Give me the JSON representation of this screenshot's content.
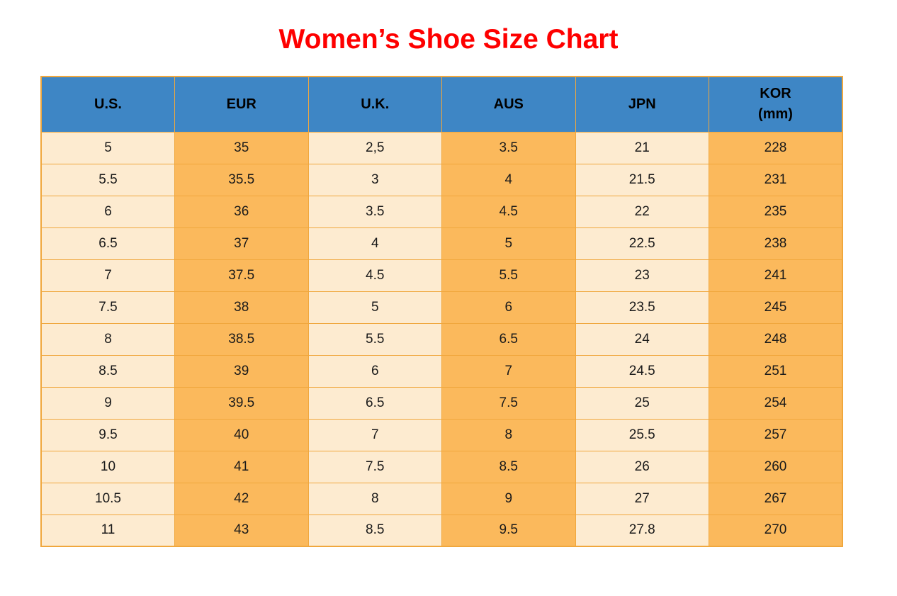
{
  "title": "Women’s Shoe Size Chart",
  "colors": {
    "title_red": "#fe0000",
    "header_blue": "#3e86c5",
    "cell_cream": "#fdebd0",
    "cell_orange": "#fbb95c",
    "border_orange": "#f0a73d"
  },
  "chart_data": {
    "type": "table",
    "title": "Women’s Shoe Size Chart",
    "columns": [
      {
        "lines": [
          "U.S."
        ]
      },
      {
        "lines": [
          "EUR"
        ]
      },
      {
        "lines": [
          "U.K."
        ]
      },
      {
        "lines": [
          "AUS"
        ]
      },
      {
        "lines": [
          "JPN"
        ]
      },
      {
        "lines": [
          "KOR",
          "(mm)"
        ]
      }
    ],
    "rows": [
      [
        "5",
        "35",
        "2,5",
        "3.5",
        "21",
        "228"
      ],
      [
        "5.5",
        "35.5",
        "3",
        "4",
        "21.5",
        "231"
      ],
      [
        "6",
        "36",
        "3.5",
        "4.5",
        "22",
        "235"
      ],
      [
        "6.5",
        "37",
        "4",
        "5",
        "22.5",
        "238"
      ],
      [
        "7",
        "37.5",
        "4.5",
        "5.5",
        "23",
        "241"
      ],
      [
        "7.5",
        "38",
        "5",
        "6",
        "23.5",
        "245"
      ],
      [
        "8",
        "38.5",
        "5.5",
        "6.5",
        "24",
        "248"
      ],
      [
        "8.5",
        "39",
        "6",
        "7",
        "24.5",
        "251"
      ],
      [
        "9",
        "39.5",
        "6.5",
        "7.5",
        "25",
        "254"
      ],
      [
        "9.5",
        "40",
        "7",
        "8",
        "25.5",
        "257"
      ],
      [
        "10",
        "41",
        "7.5",
        "8.5",
        "26",
        "260"
      ],
      [
        "10.5",
        "42",
        "8",
        "9",
        "27",
        "267"
      ],
      [
        "11",
        "43",
        "8.5",
        "9.5",
        "27.8",
        "270"
      ]
    ]
  }
}
